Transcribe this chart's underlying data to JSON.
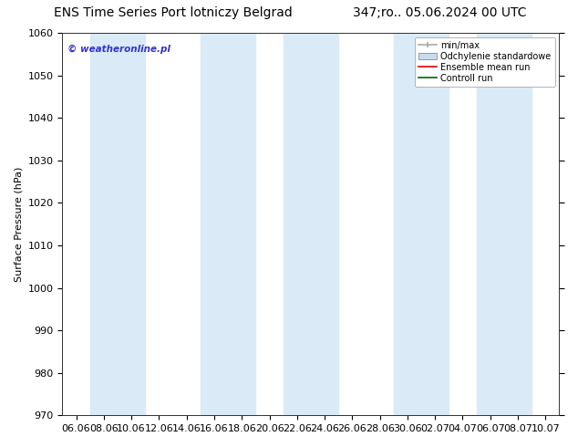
{
  "title_left": "ENS Time Series Port lotniczy Belgrad",
  "title_right": "347;ro.. 05.06.2024 00 UTC",
  "ylabel": "Surface Pressure (hPa)",
  "ylim": [
    970,
    1060
  ],
  "yticks": [
    970,
    980,
    990,
    1000,
    1010,
    1020,
    1030,
    1040,
    1050,
    1060
  ],
  "xtick_labels": [
    "06.06",
    "08.06",
    "10.06",
    "12.06",
    "14.06",
    "16.06",
    "18.06",
    "20.06",
    "22.06",
    "24.06",
    "26.06",
    "28.06",
    "30.06",
    "02.07",
    "04.07",
    "06.07",
    "08.07",
    "10.07"
  ],
  "shade_color": "#daeaf7",
  "background_color": "#ffffff",
  "watermark": "© weatheronline.pl",
  "watermark_color": "#3333cc",
  "shaded_ranges": [
    [
      1,
      2
    ],
    [
      5,
      6
    ],
    [
      8,
      9
    ],
    [
      12,
      13
    ],
    [
      15,
      16
    ]
  ],
  "legend_items": [
    {
      "label": "min/max",
      "color": "#aaaaaa",
      "lw": 1.2,
      "style": "line_with_cap"
    },
    {
      "label": "Odchylenie standardowe",
      "color": "#c8dcef",
      "style": "rect"
    },
    {
      "label": "Ensemble mean run",
      "color": "#dd0000",
      "lw": 1.2,
      "style": "line"
    },
    {
      "label": "Controll run",
      "color": "#006600",
      "lw": 1.2,
      "style": "line"
    }
  ],
  "title_fontsize": 10,
  "tick_fontsize": 8,
  "ylabel_fontsize": 8
}
